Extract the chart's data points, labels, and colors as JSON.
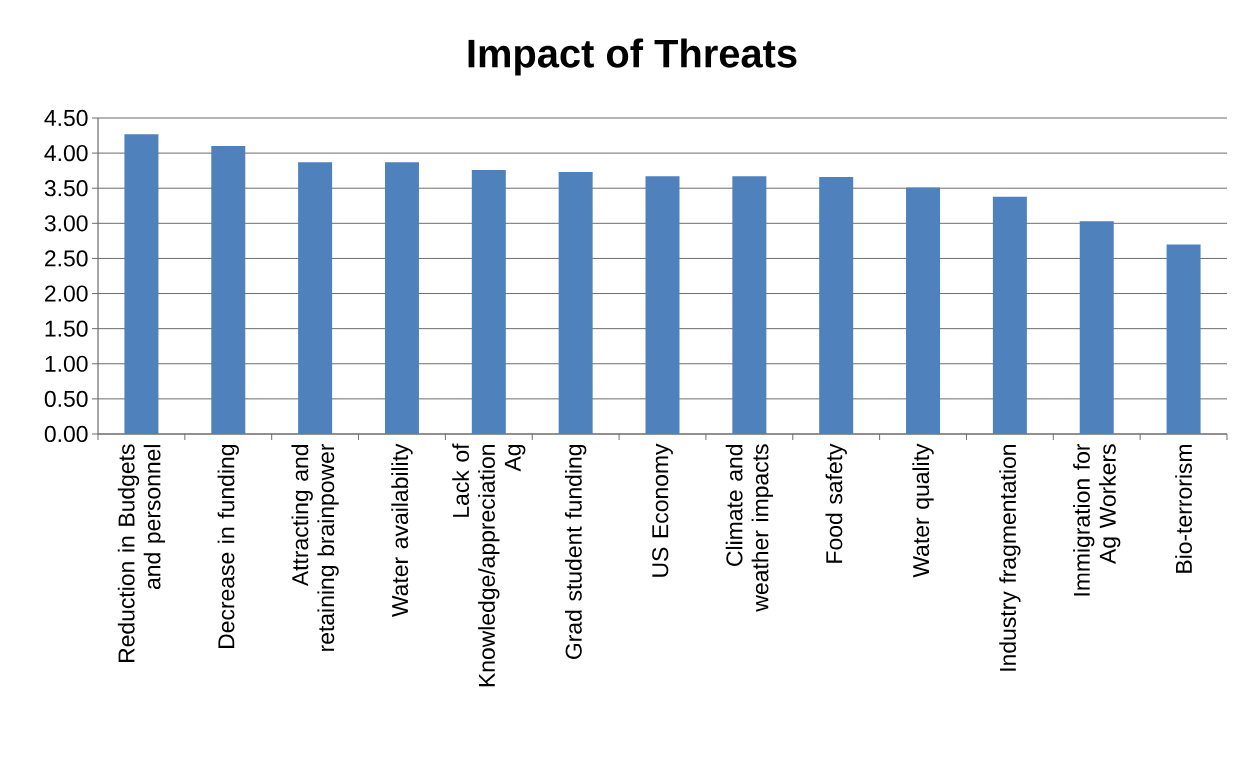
{
  "chart_data": {
    "type": "bar",
    "title": "Impact of Threats",
    "categories": [
      "Reduction in Budgets and personnel",
      "Decrease in funding",
      "Attracting and retaining brainpower",
      "Water availability",
      "Lack of Knowledge/appreciation Ag",
      "Grad student funding",
      "US Economy",
      "Climate and weather impacts",
      "Food safety",
      "Water quality",
      "Industry fragmentation",
      "Immigration for Ag Workers",
      "Bio-terrorism"
    ],
    "values": [
      4.27,
      4.1,
      3.87,
      3.87,
      3.76,
      3.73,
      3.67,
      3.67,
      3.66,
      3.51,
      3.38,
      3.03,
      2.7
    ],
    "color": "#4f81bd",
    "ylim": [
      0,
      4.5
    ],
    "yticks": [
      {
        "value": 0,
        "label": "0.00"
      },
      {
        "value": 0.5,
        "label": "0.50"
      },
      {
        "value": 1,
        "label": "1.00"
      },
      {
        "value": 1.5,
        "label": "1.50"
      },
      {
        "value": 2,
        "label": "2.00"
      },
      {
        "value": 2.5,
        "label": "2.50"
      },
      {
        "value": 3,
        "label": "3.00"
      },
      {
        "value": 3.5,
        "label": "3.50"
      },
      {
        "value": 4,
        "label": "4.00"
      },
      {
        "value": 4.5,
        "label": "4.50"
      }
    ],
    "grid": "y"
  }
}
